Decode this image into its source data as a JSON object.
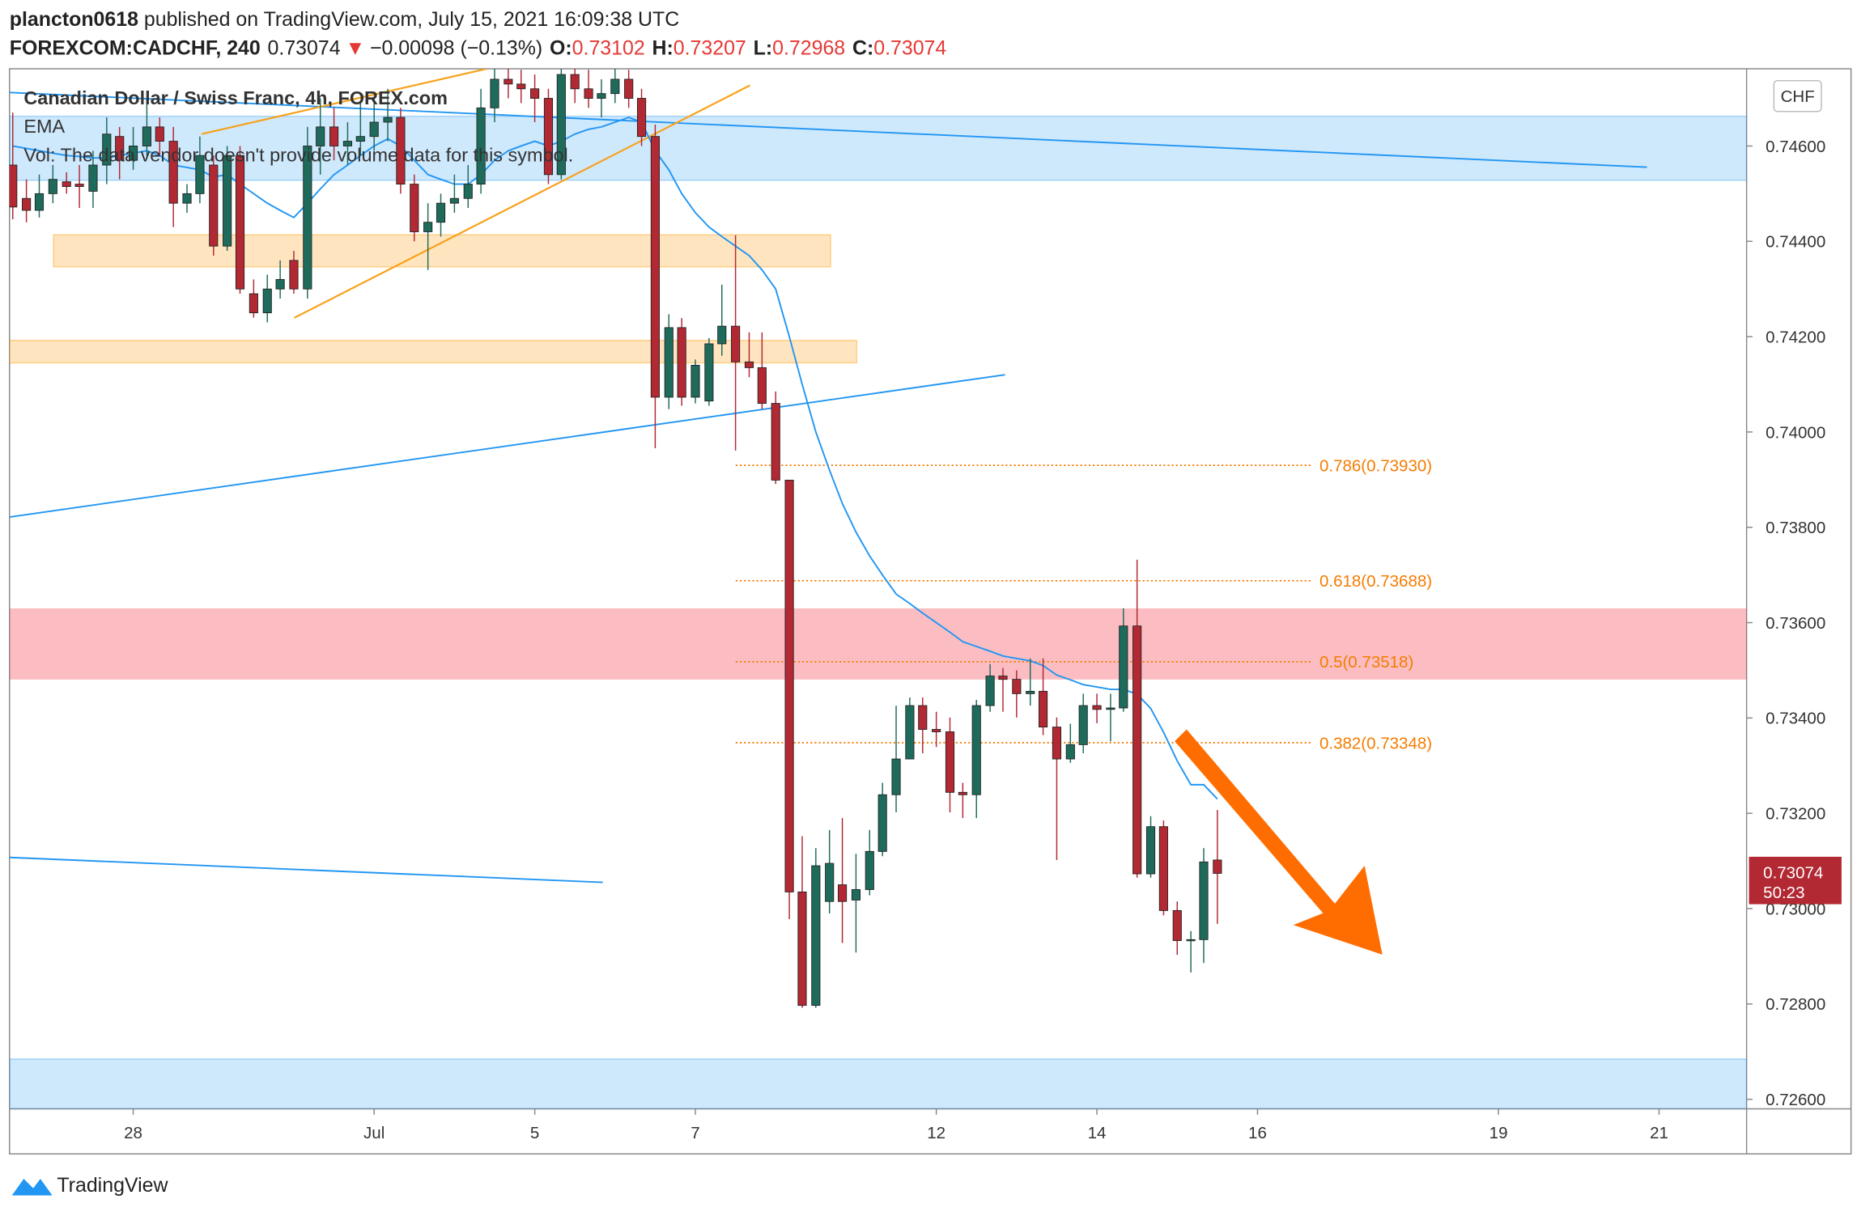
{
  "header": {
    "author": "plancton0618",
    "published": " published on TradingView.com, July 15, 2021 16:09:38 UTC",
    "symbol": "FOREXCOM:CADCHF, 240",
    "change_arrow": "▼",
    "change": "−0.00098 (−0.13%)",
    "ohlc_labels": [
      "O:",
      "H:",
      "L:",
      "C:"
    ]
  },
  "chart_data": {
    "type": "candlestick",
    "title": "Canadian Dollar / Swiss Franc, 4h, FOREX.com",
    "volume_note": "Vol: The data vendor doesn't provide volume data for this symbol.",
    "currency": "CHF",
    "countdown": "50:23",
    "up_color": "#1e6b5b",
    "down_color": "#b22833",
    "xlim": [
      -1.54,
      20.09
    ],
    "ylim": [
      0.7258,
      0.74762
    ],
    "xticks": [
      {
        "value": 0,
        "label": "28"
      },
      {
        "value": 3,
        "label": "Jul"
      },
      {
        "value": 5,
        "label": "5"
      },
      {
        "value": 7,
        "label": "7"
      },
      {
        "value": 10,
        "label": "12"
      },
      {
        "value": 12,
        "label": "14"
      },
      {
        "value": 14,
        "label": "16"
      },
      {
        "value": 17,
        "label": "19"
      },
      {
        "value": 19,
        "label": "21"
      }
    ],
    "yticks": [
      {
        "value": 0.746,
        "label": "0.74600"
      },
      {
        "value": 0.744,
        "label": "0.74400"
      },
      {
        "value": 0.742,
        "label": "0.74200"
      },
      {
        "value": 0.74,
        "label": "0.74000"
      },
      {
        "value": 0.738,
        "label": "0.73800"
      },
      {
        "value": 0.736,
        "label": "0.73600"
      },
      {
        "value": 0.734,
        "label": "0.73400"
      },
      {
        "value": 0.732,
        "label": "0.73200"
      },
      {
        "value": 0.73,
        "label": "0.73000"
      },
      {
        "value": 0.728,
        "label": "0.72800"
      },
      {
        "value": 0.726,
        "label": "0.72600"
      }
    ],
    "candles": {
      "x": [
        -1.5,
        -1.33,
        -1.17,
        -1,
        -0.83,
        -0.67,
        -0.5,
        -0.33,
        -0.17,
        0,
        0.17,
        0.33,
        0.5,
        0.67,
        0.83,
        1,
        1.17,
        1.33,
        1.5,
        1.67,
        1.83,
        2,
        2.17,
        2.33,
        2.5,
        2.67,
        2.83,
        3,
        3.17,
        3.33,
        3.5,
        3.67,
        3.83,
        4,
        4.17,
        4.33,
        4.5,
        4.67,
        4.83,
        5,
        5.17,
        5.33,
        5.5,
        5.67,
        5.83,
        6,
        6.17,
        6.33,
        6.5,
        6.67,
        6.83,
        7,
        7.17,
        7.33,
        7.5,
        7.67,
        7.83,
        8,
        8.17,
        8.33,
        8.5,
        8.67,
        8.83,
        9,
        9.17,
        9.33,
        9.5,
        9.67,
        9.83,
        10,
        10.17,
        10.33,
        10.5,
        10.67,
        10.83,
        11,
        11.17,
        11.33,
        11.5,
        11.67,
        11.83,
        12,
        12.17,
        12.33,
        12.5,
        12.67,
        12.83,
        13,
        13.17,
        13.33,
        13.5
      ],
      "open": [
        0.7456,
        0.7449,
        0.74465,
        0.745,
        0.74525,
        0.7452,
        0.74505,
        0.7456,
        0.7462,
        0.7457,
        0.746,
        0.7464,
        0.7461,
        0.7448,
        0.745,
        0.7456,
        0.7439,
        0.7458,
        0.7429,
        0.7425,
        0.743,
        0.7436,
        0.743,
        0.746,
        0.7464,
        0.746,
        0.7461,
        0.7462,
        0.7465,
        0.7466,
        0.7452,
        0.7442,
        0.7444,
        0.7448,
        0.7449,
        0.7452,
        0.7468,
        0.7474,
        0.7473,
        0.7472,
        0.747,
        0.7454,
        0.7475,
        0.7472,
        0.747,
        0.7471,
        0.7474,
        0.747,
        0.7462,
        0.74073,
        0.74219,
        0.74073,
        0.74065,
        0.74185,
        0.74222,
        0.74147,
        0.74135,
        0.7406,
        0.73899,
        0.73035,
        0.72797,
        0.73015,
        0.7305,
        0.73018,
        0.7304,
        0.7312,
        0.73239,
        0.73314,
        0.73426,
        0.73376,
        0.73371,
        0.73244,
        0.73239,
        0.73426,
        0.73488,
        0.73481,
        0.73451,
        0.73456,
        0.73381,
        0.73314,
        0.73344,
        0.73426,
        0.73418,
        0.73421,
        0.73593,
        0.73073,
        0.73172,
        0.72996,
        0.72933,
        0.72935,
        0.73102
      ],
      "high": [
        0.7467,
        0.7453,
        0.7454,
        0.7456,
        0.74545,
        0.7456,
        0.7459,
        0.7466,
        0.7464,
        0.7464,
        0.747,
        0.7466,
        0.7464,
        0.7452,
        0.7462,
        0.7458,
        0.746,
        0.746,
        0.7432,
        0.7433,
        0.7436,
        0.7438,
        0.7464,
        0.747,
        0.7468,
        0.7465,
        0.7469,
        0.747,
        0.7472,
        0.7468,
        0.7454,
        0.7448,
        0.745,
        0.7454,
        0.7456,
        0.7472,
        0.7478,
        0.7477,
        0.7476,
        0.7475,
        0.7472,
        0.7478,
        0.7479,
        0.7476,
        0.7474,
        0.7479,
        0.7476,
        0.7472,
        0.74645,
        0.74247,
        0.74239,
        0.74152,
        0.74197,
        0.74309,
        0.74413,
        0.74209,
        0.74209,
        0.74085,
        0.73899,
        0.73152,
        0.73127,
        0.73165,
        0.7319,
        0.73115,
        0.73165,
        0.73264,
        0.73426,
        0.73443,
        0.73443,
        0.73413,
        0.73401,
        0.73264,
        0.73438,
        0.73513,
        0.73505,
        0.735,
        0.73525,
        0.73525,
        0.73401,
        0.73388,
        0.73451,
        0.73451,
        0.73451,
        0.7363,
        0.73732,
        0.73194,
        0.73185,
        0.73015,
        0.72953,
        0.73127,
        0.73207
      ],
      "low": [
        0.74446,
        0.7444,
        0.7445,
        0.7448,
        0.745,
        0.7447,
        0.7447,
        0.7452,
        0.7453,
        0.7455,
        0.7458,
        0.7458,
        0.7443,
        0.7446,
        0.7448,
        0.7437,
        0.7438,
        0.7429,
        0.7424,
        0.7423,
        0.7428,
        0.7429,
        0.7428,
        0.7454,
        0.7457,
        0.7456,
        0.7458,
        0.7459,
        0.7461,
        0.745,
        0.744,
        0.7434,
        0.7441,
        0.7446,
        0.7447,
        0.745,
        0.7465,
        0.747,
        0.7469,
        0.7465,
        0.7452,
        0.7453,
        0.7469,
        0.7468,
        0.7466,
        0.7469,
        0.7468,
        0.746,
        0.73966,
        0.74048,
        0.74055,
        0.7406,
        0.74055,
        0.7416,
        0.73961,
        0.74115,
        0.74048,
        0.73891,
        0.72978,
        0.72792,
        0.72792,
        0.7299,
        0.72928,
        0.72908,
        0.73028,
        0.7311,
        0.73202,
        0.73314,
        0.73326,
        0.73339,
        0.73202,
        0.7319,
        0.7319,
        0.73413,
        0.73413,
        0.73401,
        0.73426,
        0.73364,
        0.73102,
        0.73306,
        0.73326,
        0.73389,
        0.73351,
        0.73413,
        0.73065,
        0.73065,
        0.72986,
        0.72903,
        0.72866,
        0.72886,
        0.72968
      ],
      "close": [
        0.74472,
        0.74465,
        0.745,
        0.7453,
        0.74515,
        0.74515,
        0.7456,
        0.74625,
        0.7457,
        0.746,
        0.7464,
        0.7461,
        0.7448,
        0.745,
        0.7458,
        0.7439,
        0.7458,
        0.743,
        0.7425,
        0.743,
        0.7432,
        0.743,
        0.746,
        0.7464,
        0.746,
        0.7461,
        0.7462,
        0.7465,
        0.7466,
        0.7452,
        0.7442,
        0.7444,
        0.7448,
        0.7449,
        0.7452,
        0.7468,
        0.7474,
        0.7473,
        0.7472,
        0.747,
        0.7454,
        0.7475,
        0.7472,
        0.747,
        0.7471,
        0.7474,
        0.747,
        0.7462,
        0.74073,
        0.74219,
        0.74073,
        0.7414,
        0.74185,
        0.74222,
        0.74147,
        0.74135,
        0.7406,
        0.73899,
        0.73035,
        0.72797,
        0.7309,
        0.73095,
        0.73015,
        0.7304,
        0.7312,
        0.73239,
        0.73314,
        0.73426,
        0.73376,
        0.73371,
        0.73244,
        0.73239,
        0.73426,
        0.73488,
        0.73481,
        0.73451,
        0.73456,
        0.73381,
        0.73314,
        0.73344,
        0.73426,
        0.73418,
        0.73421,
        0.73593,
        0.73073,
        0.73172,
        0.72996,
        0.72933,
        0.72935,
        0.73098,
        0.73074
      ]
    },
    "series": [
      {
        "name": "EMA",
        "color": "#2196f3",
        "values": [
          0.746,
          0.74595,
          0.7459,
          0.74585,
          0.7458,
          0.74578,
          0.74575,
          0.74575,
          0.7458,
          0.74585,
          0.7459,
          0.7458,
          0.7456,
          0.74555,
          0.7455,
          0.74535,
          0.7454,
          0.7452,
          0.745,
          0.7448,
          0.74465,
          0.7445,
          0.7448,
          0.7451,
          0.7454,
          0.7456,
          0.7458,
          0.746,
          0.74615,
          0.746,
          0.7457,
          0.7454,
          0.7453,
          0.7452,
          0.7452,
          0.7454,
          0.7457,
          0.7459,
          0.746,
          0.7461,
          0.746,
          0.7461,
          0.74625,
          0.74635,
          0.7464,
          0.7465,
          0.7466,
          0.7465,
          0.7459,
          0.7455,
          0.745,
          0.7446,
          0.7443,
          0.7441,
          0.7439,
          0.7437,
          0.7434,
          0.743,
          0.742,
          0.741,
          0.74,
          0.7392,
          0.7385,
          0.7379,
          0.7374,
          0.737,
          0.7366,
          0.7364,
          0.7362,
          0.736,
          0.7358,
          0.7356,
          0.7355,
          0.7354,
          0.7353,
          0.73525,
          0.7352,
          0.7351,
          0.7349,
          0.7348,
          0.7347,
          0.73465,
          0.7346,
          0.7346,
          0.7345,
          0.7342,
          0.7337,
          0.7331,
          0.7326,
          0.7326,
          0.7323
        ]
      }
    ],
    "fib_levels": [
      {
        "label": "0.786(0.73930)",
        "value": 0.7393
      },
      {
        "label": "0.618(0.73688)",
        "value": 0.73688
      },
      {
        "label": "0.5(0.73518)",
        "value": 0.73518
      },
      {
        "label": "0.382(0.73348)",
        "value": 0.73348
      }
    ]
  },
  "footer": {
    "brand": "TradingView"
  }
}
